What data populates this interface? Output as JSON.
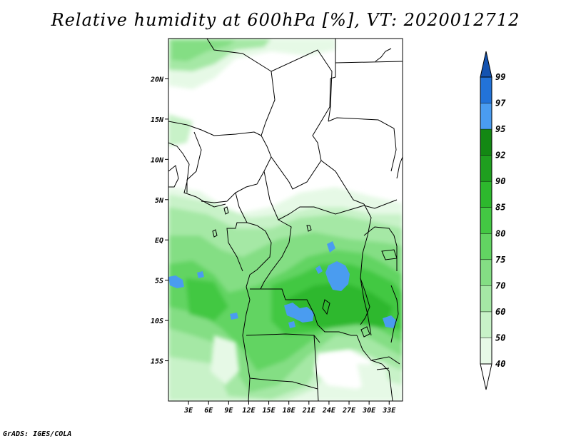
{
  "title": "Relative humidity at 600hPa [%], VT: 2020012712",
  "credit": "GrADS: IGES/COLA",
  "chart_data": {
    "type": "heatmap",
    "variable": "Relative humidity",
    "level": "600hPa",
    "units": "%",
    "valid_time": "2020012712",
    "lon_range": [
      0,
      35
    ],
    "lat_range": [
      -20,
      25
    ],
    "x_ticks": [
      "3E",
      "6E",
      "9E",
      "12E",
      "15E",
      "18E",
      "21E",
      "24E",
      "27E",
      "30E",
      "33E"
    ],
    "x_tick_values": [
      3,
      6,
      9,
      12,
      15,
      18,
      21,
      24,
      27,
      30,
      33
    ],
    "y_ticks": [
      "20N",
      "15N",
      "10N",
      "5N",
      "EQ",
      "5S",
      "10S",
      "15S"
    ],
    "y_tick_values": [
      20,
      15,
      10,
      5,
      0,
      -5,
      -10,
      -15
    ],
    "colorbar": {
      "levels": [
        "40",
        "50",
        "60",
        "70",
        "75",
        "80",
        "85",
        "90",
        "92",
        "95",
        "97",
        "99"
      ],
      "colors": [
        "#ffffff",
        "#e6f9e6",
        "#c8f2c8",
        "#a5e8a5",
        "#84de84",
        "#62d462",
        "#43c843",
        "#2db82d",
        "#1f9f1f",
        "#138813",
        "#4a9cf0",
        "#2273d9",
        "#1453b0"
      ]
    },
    "field_colors": {
      "rh_40_50": "#e6f9e6",
      "rh_50_60": "#c8f2c8",
      "rh_60_70": "#a5e8a5",
      "rh_70_75": "#84de84",
      "rh_75_80": "#62d462",
      "rh_80_85": "#43c843",
      "rh_85_90": "#2db82d",
      "rh_95_97": "#4a9cf0"
    }
  }
}
